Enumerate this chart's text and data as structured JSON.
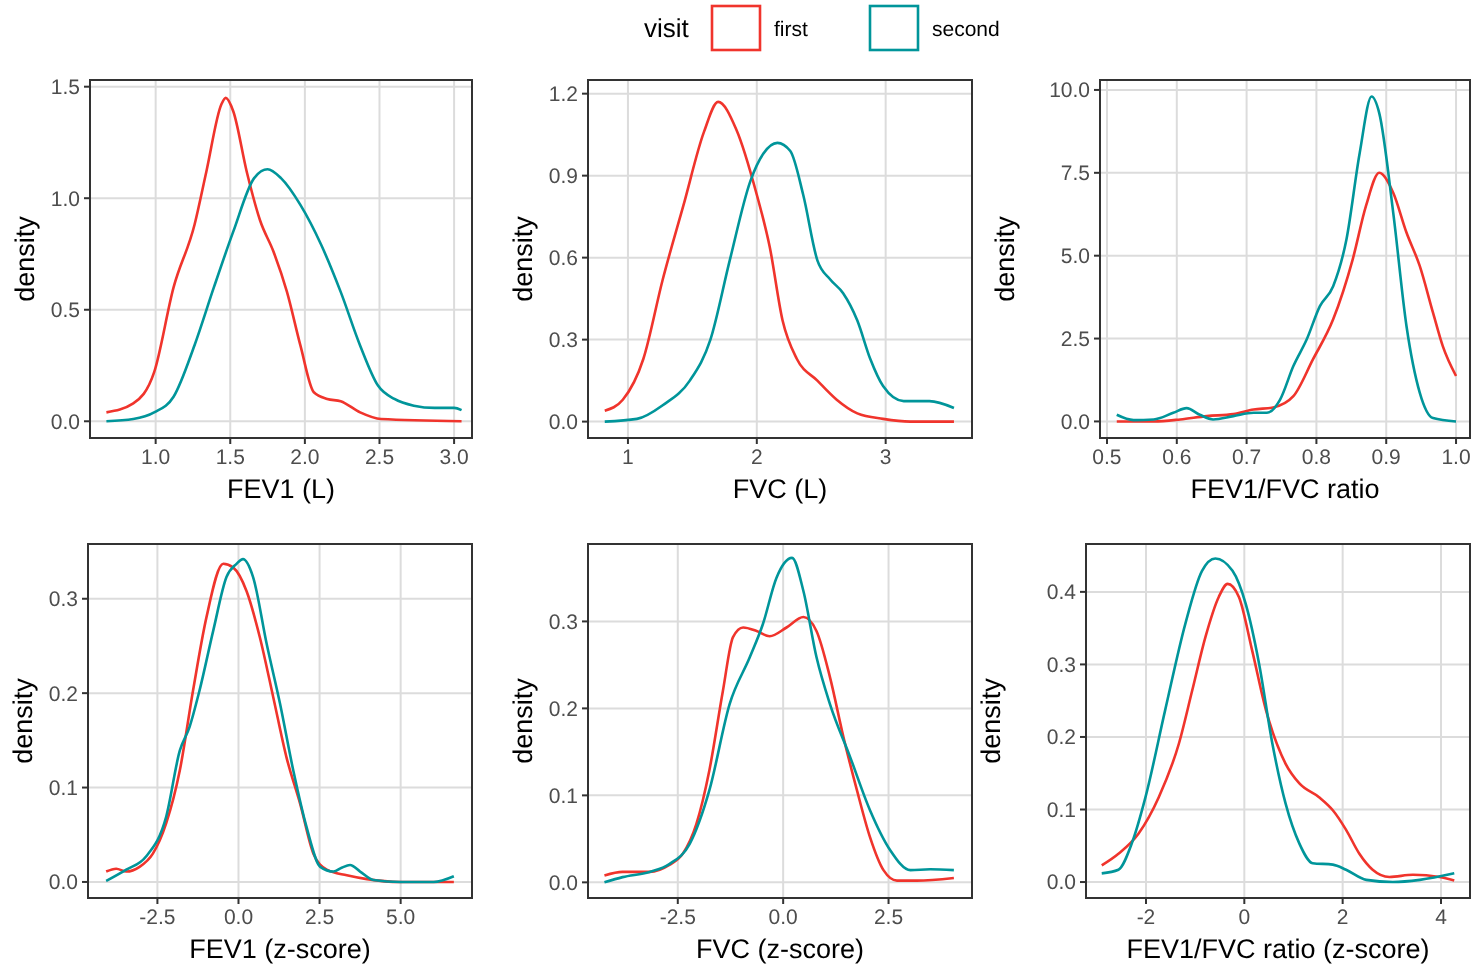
{
  "chart_data": [
    {
      "type": "line",
      "xlabel": "FEV1 (L)",
      "ylabel": "density",
      "legend_title": "visit",
      "legend": "top",
      "grid": true,
      "xlim": [
        0.56,
        3.12
      ],
      "ylim": [
        -0.075,
        1.53
      ],
      "xticks": [
        {
          "value": 1,
          "label": "1.0"
        },
        {
          "value": 1.5,
          "label": "1.5"
        },
        {
          "value": 2,
          "label": "2.0"
        },
        {
          "value": 2.5,
          "label": "2.5"
        },
        {
          "value": 3,
          "label": "3.0"
        }
      ],
      "yticks": [
        {
          "value": 0,
          "label": "0.0"
        },
        {
          "value": 0.5,
          "label": "0.5"
        },
        {
          "value": 1,
          "label": "1.0"
        },
        {
          "value": 1.5,
          "label": "1.5"
        }
      ],
      "series": [
        {
          "name": "first",
          "color": "#f0342c",
          "x": [
            0.67,
            0.85,
            0.99,
            1.12,
            1.26,
            1.34,
            1.44,
            1.47,
            1.52,
            1.61,
            1.7,
            1.79,
            1.88,
            1.97,
            2.06,
            2.15,
            2.24,
            2.37,
            2.51,
            3.05
          ],
          "values": [
            0.04,
            0.08,
            0.22,
            0.6,
            0.88,
            1.12,
            1.42,
            1.45,
            1.39,
            1.12,
            0.9,
            0.76,
            0.58,
            0.34,
            0.13,
            0.1,
            0.09,
            0.04,
            0.01,
            0
          ]
        },
        {
          "name": "second",
          "color": "#00959a",
          "x": [
            0.67,
            0.85,
            0.99,
            1.12,
            1.26,
            1.39,
            1.52,
            1.66,
            1.75,
            1.84,
            1.97,
            2.11,
            2.24,
            2.37,
            2.49,
            2.6,
            2.73,
            2.87,
            3.0,
            3.05
          ],
          "values": [
            0,
            0.01,
            0.04,
            0.11,
            0.34,
            0.6,
            0.85,
            1.09,
            1.13,
            1.09,
            0.97,
            0.79,
            0.58,
            0.34,
            0.16,
            0.1,
            0.07,
            0.06,
            0.06,
            0.05
          ]
        }
      ]
    },
    {
      "type": "line",
      "xlabel": "FVC (L)",
      "ylabel": "density",
      "grid": true,
      "xlim": [
        0.69,
        3.67
      ],
      "ylim": [
        -0.06,
        1.25
      ],
      "xticks": [
        1,
        2,
        3
      ],
      "yticks": [
        {
          "value": 0,
          "label": "0.0"
        },
        {
          "value": 0.3,
          "label": "0.3"
        },
        {
          "value": 0.6,
          "label": "0.6"
        },
        {
          "value": 0.9,
          "label": "0.9"
        },
        {
          "value": 1.2,
          "label": "1.2"
        }
      ],
      "series": [
        {
          "color": "#f0342c",
          "x": [
            0.82,
            0.96,
            1.12,
            1.27,
            1.43,
            1.59,
            1.7,
            1.84,
            2.0,
            2.1,
            2.2,
            2.31,
            2.47,
            2.62,
            2.78,
            2.98,
            3.19,
            3.53
          ],
          "values": [
            0.04,
            0.08,
            0.23,
            0.52,
            0.79,
            1.06,
            1.17,
            1.07,
            0.83,
            0.64,
            0.37,
            0.23,
            0.15,
            0.08,
            0.03,
            0.01,
            0,
            0
          ]
        },
        {
          "color": "#00959a",
          "x": [
            0.82,
            1.07,
            1.27,
            1.48,
            1.64,
            1.79,
            1.95,
            2.05,
            2.16,
            2.26,
            2.36,
            2.47,
            2.57,
            2.67,
            2.78,
            2.88,
            2.98,
            3.14,
            3.34,
            3.53
          ],
          "values": [
            0,
            0.01,
            0.06,
            0.15,
            0.3,
            0.59,
            0.88,
            0.98,
            1.02,
            0.99,
            0.83,
            0.59,
            0.52,
            0.47,
            0.37,
            0.23,
            0.13,
            0.075,
            0.075,
            0.05
          ]
        }
      ]
    },
    {
      "type": "line",
      "xlabel": "FEV1/FVC ratio",
      "ylabel": "density",
      "grid": true,
      "xlim": [
        0.49,
        1.02
      ],
      "ylim": [
        -0.5,
        10.3
      ],
      "xticks": [
        {
          "value": 0.5,
          "label": "0.5"
        },
        {
          "value": 0.6,
          "label": "0.6"
        },
        {
          "value": 0.7,
          "label": "0.7"
        },
        {
          "value": 0.8,
          "label": "0.8"
        },
        {
          "value": 0.9,
          "label": "0.9"
        },
        {
          "value": 1,
          "label": "1.0"
        }
      ],
      "yticks": [
        {
          "value": 0,
          "label": "0.0"
        },
        {
          "value": 2.5,
          "label": "2.5"
        },
        {
          "value": 5,
          "label": "5.0"
        },
        {
          "value": 7.5,
          "label": "7.5"
        },
        {
          "value": 10,
          "label": "10.0"
        }
      ],
      "series": [
        {
          "color": "#f0342c",
          "x": [
            0.514,
            0.567,
            0.605,
            0.643,
            0.681,
            0.71,
            0.738,
            0.767,
            0.795,
            0.824,
            0.852,
            0.871,
            0.89,
            0.91,
            0.929,
            0.948,
            0.967,
            0.981,
            1.0
          ],
          "values": [
            0,
            0,
            0.06,
            0.16,
            0.22,
            0.36,
            0.42,
            0.76,
            1.87,
            3.08,
            4.89,
            6.5,
            7.5,
            6.9,
            5.7,
            4.69,
            3.28,
            2.27,
            1.37
          ]
        },
        {
          "color": "#00959a",
          "x": [
            0.514,
            0.538,
            0.567,
            0.595,
            0.614,
            0.633,
            0.652,
            0.681,
            0.71,
            0.729,
            0.748,
            0.767,
            0.786,
            0.805,
            0.824,
            0.843,
            0.862,
            0.879,
            0.89,
            0.91,
            0.929,
            0.948,
            0.967,
            1.0
          ],
          "values": [
            0.2,
            0.04,
            0.06,
            0.26,
            0.4,
            0.2,
            0.06,
            0.16,
            0.26,
            0.26,
            0.66,
            1.67,
            2.47,
            3.48,
            4.08,
            5.49,
            8.1,
            9.8,
            9.3,
            6.3,
            2.88,
            0.87,
            0.1,
            0
          ]
        }
      ]
    },
    {
      "type": "line",
      "xlabel": "FEV1 (z-score)",
      "ylabel": "density",
      "grid": true,
      "xlim": [
        -4.64,
        7.2
      ],
      "ylim": [
        -0.017,
        0.358
      ],
      "xticks": [
        -2.5,
        {
          "value": 0,
          "label": "0.0"
        },
        2.5,
        {
          "value": 5,
          "label": "5.0"
        }
      ],
      "yticks": [
        {
          "value": 0,
          "label": "0.0"
        },
        0.1,
        0.2,
        0.3
      ],
      "series": [
        {
          "color": "#f0342c",
          "x": [
            -4.08,
            -3.77,
            -3.46,
            -3.05,
            -2.64,
            -2.23,
            -1.81,
            -1.4,
            -0.99,
            -0.47,
            -0.16,
            0.25,
            0.66,
            1.07,
            1.48,
            1.9,
            2.31,
            2.72,
            3.34,
            3.96,
            4.99,
            6.64
          ],
          "values": [
            0.011,
            0.014,
            0.011,
            0.016,
            0.03,
            0.062,
            0.118,
            0.203,
            0.28,
            0.337,
            0.333,
            0.308,
            0.259,
            0.196,
            0.132,
            0.083,
            0.03,
            0.013,
            0.007,
            0.003,
            0,
            0
          ]
        },
        {
          "color": "#00959a",
          "x": [
            -4.08,
            -3.46,
            -2.85,
            -2.23,
            -1.81,
            -1.51,
            -1.2,
            -0.78,
            -0.37,
            -0.06,
            0.14,
            0.45,
            0.87,
            1.28,
            1.69,
            2.1,
            2.52,
            2.93,
            3.18,
            3.44,
            3.75,
            4.16,
            4.99,
            6.02,
            6.64
          ],
          "values": [
            0.001,
            0.013,
            0.027,
            0.069,
            0.139,
            0.164,
            0.203,
            0.266,
            0.323,
            0.337,
            0.342,
            0.323,
            0.252,
            0.189,
            0.118,
            0.058,
            0.016,
            0.011,
            0.015,
            0.018,
            0.011,
            0.002,
            0,
            0,
            0.006
          ]
        }
      ]
    },
    {
      "type": "line",
      "xlabel": "FVC (z-score)",
      "ylabel": "density",
      "grid": true,
      "xlim": [
        -4.63,
        4.48
      ],
      "ylim": [
        -0.018,
        0.389
      ],
      "xticks": [
        -2.5,
        {
          "value": 0,
          "label": "0.0"
        },
        2.5
      ],
      "yticks": [
        {
          "value": 0,
          "label": "0.0"
        },
        0.1,
        0.2,
        0.3
      ],
      "series": [
        {
          "color": "#f0342c",
          "x": [
            -4.24,
            -3.81,
            -3.17,
            -2.7,
            -2.38,
            -2.06,
            -1.75,
            -1.43,
            -1.19,
            -0.95,
            -0.63,
            -0.32,
            0.08,
            0.48,
            0.79,
            1.11,
            1.43,
            1.75,
            2.06,
            2.38,
            2.7,
            3.17,
            4.05
          ],
          "values": [
            0.008,
            0.012,
            0.012,
            0.02,
            0.033,
            0.067,
            0.129,
            0.22,
            0.282,
            0.293,
            0.289,
            0.283,
            0.293,
            0.305,
            0.289,
            0.236,
            0.167,
            0.106,
            0.052,
            0.014,
            0.002,
            0.002,
            0.005
          ]
        },
        {
          "color": "#00959a",
          "x": [
            -4.24,
            -3.81,
            -3.17,
            -2.7,
            -2.22,
            -1.75,
            -1.27,
            -0.79,
            -0.48,
            -0.16,
            0.21,
            0.48,
            0.79,
            1.11,
            1.59,
            2.06,
            2.54,
            3.02,
            3.49,
            4.05
          ],
          "values": [
            0,
            0.006,
            0.012,
            0.021,
            0.044,
            0.106,
            0.205,
            0.259,
            0.297,
            0.35,
            0.373,
            0.335,
            0.259,
            0.205,
            0.144,
            0.083,
            0.037,
            0.014,
            0.015,
            0.014
          ]
        }
      ]
    },
    {
      "type": "line",
      "xlabel": "FEV1/FVC ratio (z-score)",
      "ylabel": "density",
      "grid": true,
      "xlim": [
        -3.22,
        4.59
      ],
      "ylim": [
        -0.022,
        0.466
      ],
      "xticks": [
        -2,
        0,
        2,
        4
      ],
      "yticks": [
        {
          "value": 0,
          "label": "0.0"
        },
        0.1,
        0.2,
        0.3,
        0.4
      ],
      "series": [
        {
          "color": "#f0342c",
          "x": [
            -2.9,
            -2.56,
            -2.15,
            -1.74,
            -1.33,
            -1.06,
            -0.79,
            -0.52,
            -0.34,
            -0.11,
            0.16,
            0.44,
            0.84,
            1.12,
            1.52,
            1.8,
            2.07,
            2.34,
            2.61,
            2.95,
            3.43,
            3.97,
            4.27
          ],
          "values": [
            0.023,
            0.039,
            0.067,
            0.117,
            0.191,
            0.264,
            0.338,
            0.393,
            0.411,
            0.393,
            0.319,
            0.237,
            0.163,
            0.136,
            0.117,
            0.099,
            0.072,
            0.039,
            0.017,
            0.007,
            0.01,
            0.007,
            0.002
          ]
        },
        {
          "color": "#00959a",
          "x": [
            -2.9,
            -2.56,
            -2.29,
            -2.01,
            -1.61,
            -1.2,
            -0.86,
            -0.59,
            -0.24,
            0.03,
            0.3,
            0.57,
            0.84,
            1.12,
            1.39,
            1.8,
            2.07,
            2.48,
            3.02,
            3.57,
            4.27
          ],
          "values": [
            0.012,
            0.017,
            0.053,
            0.117,
            0.237,
            0.356,
            0.429,
            0.446,
            0.429,
            0.383,
            0.301,
            0.191,
            0.108,
            0.053,
            0.026,
            0.024,
            0.017,
            0.003,
            0,
            0.003,
            0.012
          ]
        }
      ]
    }
  ]
}
